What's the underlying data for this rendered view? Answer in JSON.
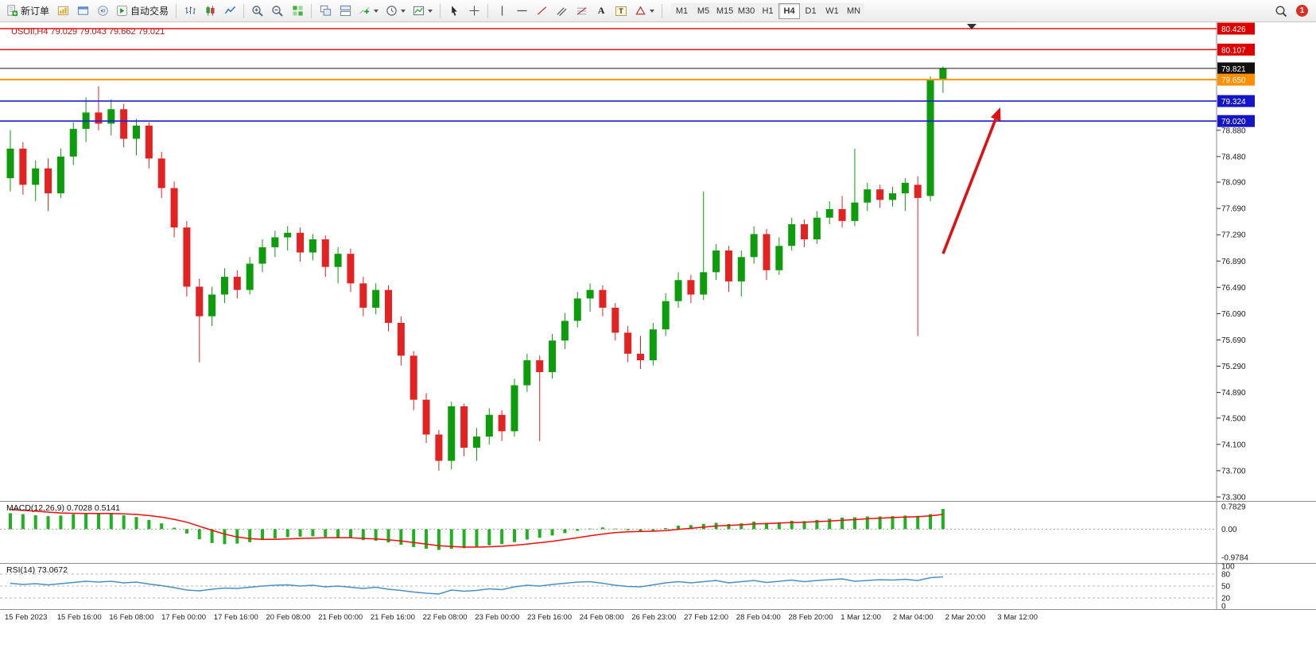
{
  "toolbar": {
    "new_order_label": "新订单",
    "auto_trading_label": "自动交易",
    "text_tool_glyph": "A",
    "label_tool_glyph": "T",
    "timeframes": [
      "M1",
      "M5",
      "M15",
      "M30",
      "H1",
      "H4",
      "D1",
      "W1",
      "MN"
    ],
    "active_timeframe": "H4",
    "notification_count": "1"
  },
  "chart": {
    "title_text": "USOIl,H4 79.029 79.043 79.662 79.021"
  },
  "chart_data": {
    "type": "candlestick",
    "symbol": "USOIl",
    "period": "H4",
    "colors": {
      "bull": "#0c9c0c",
      "bear": "#e32222",
      "macd_hist": "#1eb31e",
      "macd_signal": "#f40b0b",
      "rsi": "#4a90c2",
      "title": "#c01212",
      "arrow": "#e01010"
    },
    "price_axis": {
      "max": 80.426,
      "min": 73.3,
      "ticks": [
        78.88,
        78.48,
        78.09,
        77.69,
        77.29,
        76.89,
        76.49,
        76.09,
        75.69,
        75.29,
        74.89,
        74.5,
        74.1,
        73.7,
        73.3
      ]
    },
    "hlines": [
      {
        "price": 80.426,
        "color": "#e51515",
        "tag": "#dd0000",
        "width": 1.4
      },
      {
        "price": 80.107,
        "color": "#e51515",
        "tag": "#dd0000",
        "width": 1.4
      },
      {
        "price": 79.821,
        "color": "#1a1a1a",
        "tag": "#111111",
        "width": 1
      },
      {
        "price": 79.65,
        "color": "#ff9500",
        "tag": "#ff8e00",
        "width": 2
      },
      {
        "price": 79.324,
        "color": "#2121cd",
        "tag": "#1515c8",
        "width": 1.7
      },
      {
        "price": 79.02,
        "color": "#2121cd",
        "tag": "#1515c8",
        "width": 1.7
      }
    ],
    "candles": [
      [
        78.15,
        78.88,
        77.95,
        78.6
      ],
      [
        78.6,
        78.7,
        77.9,
        78.05
      ],
      [
        78.05,
        78.42,
        77.8,
        78.3
      ],
      [
        78.3,
        78.45,
        77.65,
        77.92
      ],
      [
        77.92,
        78.6,
        77.85,
        78.48
      ],
      [
        78.48,
        79.0,
        78.35,
        78.9
      ],
      [
        78.9,
        79.38,
        78.7,
        79.15
      ],
      [
        79.15,
        79.55,
        78.88,
        78.98
      ],
      [
        78.98,
        79.35,
        78.8,
        79.2
      ],
      [
        79.2,
        79.28,
        78.62,
        78.75
      ],
      [
        78.75,
        79.05,
        78.5,
        78.95
      ],
      [
        78.95,
        79.0,
        78.3,
        78.45
      ],
      [
        78.45,
        78.55,
        77.85,
        78.0
      ],
      [
        78.0,
        78.1,
        77.25,
        77.4
      ],
      [
        77.4,
        77.5,
        76.35,
        76.5
      ],
      [
        76.5,
        76.62,
        75.35,
        76.05
      ],
      [
        76.05,
        76.5,
        75.9,
        76.38
      ],
      [
        76.38,
        76.78,
        76.25,
        76.65
      ],
      [
        76.65,
        76.75,
        76.32,
        76.45
      ],
      [
        76.45,
        76.95,
        76.38,
        76.85
      ],
      [
        76.85,
        77.22,
        76.72,
        77.1
      ],
      [
        77.1,
        77.35,
        76.95,
        77.25
      ],
      [
        77.25,
        77.42,
        77.05,
        77.32
      ],
      [
        77.32,
        77.4,
        76.88,
        77.02
      ],
      [
        77.02,
        77.3,
        76.9,
        77.22
      ],
      [
        77.22,
        77.28,
        76.65,
        76.8
      ],
      [
        76.8,
        77.1,
        76.55,
        77.0
      ],
      [
        77.0,
        77.08,
        76.42,
        76.55
      ],
      [
        76.55,
        76.65,
        76.05,
        76.18
      ],
      [
        76.18,
        76.55,
        76.08,
        76.45
      ],
      [
        76.45,
        76.52,
        75.82,
        75.95
      ],
      [
        75.95,
        76.05,
        75.3,
        75.45
      ],
      [
        75.45,
        75.52,
        74.62,
        74.78
      ],
      [
        74.78,
        74.88,
        74.12,
        74.25
      ],
      [
        74.25,
        74.32,
        73.7,
        73.85
      ],
      [
        73.85,
        74.75,
        73.72,
        74.68
      ],
      [
        74.68,
        74.72,
        73.92,
        74.05
      ],
      [
        74.05,
        74.35,
        73.85,
        74.22
      ],
      [
        74.22,
        74.65,
        74.1,
        74.55
      ],
      [
        74.55,
        74.62,
        74.15,
        74.3
      ],
      [
        74.3,
        75.1,
        74.22,
        75.0
      ],
      [
        75.0,
        75.48,
        74.9,
        75.38
      ],
      [
        75.38,
        75.45,
        74.15,
        75.2
      ],
      [
        75.2,
        75.78,
        75.1,
        75.68
      ],
      [
        75.68,
        76.1,
        75.55,
        75.98
      ],
      [
        75.98,
        76.42,
        75.88,
        76.32
      ],
      [
        76.32,
        76.55,
        76.12,
        76.45
      ],
      [
        76.45,
        76.52,
        76.05,
        76.18
      ],
      [
        76.18,
        76.25,
        75.68,
        75.8
      ],
      [
        75.8,
        75.9,
        75.35,
        75.48
      ],
      [
        75.48,
        75.75,
        75.25,
        75.38
      ],
      [
        75.38,
        75.95,
        75.3,
        75.85
      ],
      [
        75.85,
        76.4,
        75.75,
        76.28
      ],
      [
        76.28,
        76.72,
        76.18,
        76.6
      ],
      [
        76.6,
        76.68,
        76.25,
        76.38
      ],
      [
        76.38,
        77.95,
        76.3,
        76.72
      ],
      [
        76.72,
        77.15,
        76.6,
        77.05
      ],
      [
        77.05,
        77.12,
        76.42,
        76.58
      ],
      [
        76.58,
        77.05,
        76.35,
        76.95
      ],
      [
        76.95,
        77.42,
        76.85,
        77.3
      ],
      [
        77.3,
        77.38,
        76.6,
        76.75
      ],
      [
        76.75,
        77.25,
        76.68,
        77.12
      ],
      [
        77.12,
        77.55,
        77.05,
        77.45
      ],
      [
        77.45,
        77.52,
        77.1,
        77.22
      ],
      [
        77.22,
        77.65,
        77.15,
        77.55
      ],
      [
        77.55,
        77.8,
        77.45,
        77.68
      ],
      [
        77.68,
        77.88,
        77.4,
        77.5
      ],
      [
        77.5,
        78.6,
        77.42,
        77.78
      ],
      [
        77.78,
        78.08,
        77.65,
        77.98
      ],
      [
        77.98,
        78.05,
        77.7,
        77.82
      ],
      [
        77.82,
        78.02,
        77.72,
        77.92
      ],
      [
        77.92,
        78.15,
        77.65,
        78.08
      ],
      [
        78.05,
        78.18,
        75.75,
        77.85
      ],
      [
        77.88,
        79.7,
        77.8,
        79.64
      ],
      [
        79.64,
        79.85,
        79.45,
        79.82
      ]
    ],
    "macd": {
      "label": "MACD(12,26,9)",
      "main_value": "0.7028",
      "signal_value": "0.5141",
      "max": 0.7829,
      "min": -0.9784,
      "axis": [
        {
          "label": "0.7829",
          "value": 0.7829
        },
        {
          "label": "0.00",
          "value": 0
        },
        {
          "label": "-0.9784",
          "value": -0.9784
        }
      ],
      "hist": [
        0.55,
        0.52,
        0.48,
        0.45,
        0.47,
        0.52,
        0.55,
        0.53,
        0.54,
        0.48,
        0.42,
        0.32,
        0.2,
        0.05,
        -0.15,
        -0.35,
        -0.48,
        -0.52,
        -0.5,
        -0.45,
        -0.38,
        -0.32,
        -0.28,
        -0.26,
        -0.25,
        -0.27,
        -0.28,
        -0.32,
        -0.38,
        -0.4,
        -0.46,
        -0.54,
        -0.62,
        -0.68,
        -0.72,
        -0.68,
        -0.66,
        -0.62,
        -0.56,
        -0.52,
        -0.45,
        -0.36,
        -0.3,
        -0.22,
        -0.14,
        -0.06,
        0.02,
        0.06,
        0.02,
        -0.04,
        -0.08,
        -0.05,
        0.04,
        0.12,
        0.14,
        0.18,
        0.22,
        0.18,
        0.2,
        0.26,
        0.22,
        0.24,
        0.29,
        0.28,
        0.32,
        0.36,
        0.4,
        0.41,
        0.44,
        0.44,
        0.45,
        0.47,
        0.46,
        0.52,
        0.7
      ],
      "signal": [
        0.68,
        0.65,
        0.62,
        0.59,
        0.56,
        0.55,
        0.54,
        0.54,
        0.54,
        0.53,
        0.51,
        0.47,
        0.42,
        0.34,
        0.24,
        0.1,
        -0.04,
        -0.17,
        -0.27,
        -0.33,
        -0.35,
        -0.35,
        -0.34,
        -0.32,
        -0.31,
        -0.3,
        -0.3,
        -0.3,
        -0.32,
        -0.34,
        -0.37,
        -0.41,
        -0.46,
        -0.52,
        -0.57,
        -0.6,
        -0.62,
        -0.62,
        -0.61,
        -0.59,
        -0.56,
        -0.52,
        -0.47,
        -0.42,
        -0.36,
        -0.3,
        -0.23,
        -0.17,
        -0.12,
        -0.09,
        -0.08,
        -0.07,
        -0.05,
        -0.01,
        0.03,
        0.07,
        0.11,
        0.13,
        0.15,
        0.18,
        0.19,
        0.21,
        0.23,
        0.24,
        0.26,
        0.28,
        0.31,
        0.33,
        0.36,
        0.38,
        0.4,
        0.42,
        0.43,
        0.46,
        0.51
      ]
    },
    "rsi": {
      "label": "RSI(14)",
      "value": "73.0672",
      "axis": [
        100,
        80,
        50,
        20,
        0
      ],
      "dashed_levels": [
        80,
        50,
        20
      ],
      "values": [
        57,
        54,
        56,
        53,
        56,
        59,
        62,
        60,
        62,
        58,
        60,
        55,
        51,
        46,
        40,
        38,
        42,
        45,
        44,
        47,
        50,
        52,
        53,
        50,
        52,
        48,
        50,
        47,
        44,
        47,
        42,
        39,
        35,
        32,
        30,
        40,
        37,
        39,
        43,
        41,
        48,
        52,
        50,
        54,
        57,
        60,
        61,
        57,
        52,
        49,
        48,
        53,
        58,
        61,
        58,
        61,
        64,
        58,
        61,
        64,
        59,
        62,
        65,
        61,
        64,
        66,
        68,
        62,
        64,
        66,
        65,
        67,
        64,
        71,
        73
      ]
    },
    "time_labels": [
      "15 Feb 2023",
      "15 Feb 16:00",
      "16 Feb 08:00",
      "17 Feb 00:00",
      "17 Feb 16:00",
      "20 Feb 08:00",
      "21 Feb 00:00",
      "21 Feb 16:00",
      "22 Feb 08:00",
      "23 Feb 00:00",
      "23 Feb 16:00",
      "24 Feb 08:00",
      "26 Feb 23:00",
      "27 Feb 12:00",
      "28 Feb 04:00",
      "28 Feb 20:00",
      "1 Mar 12:00",
      "2 Mar 04:00",
      "2 Mar 20:00",
      "3 Mar 12:00"
    ],
    "annotations": {
      "arrow": {
        "color": "#e01010"
      }
    }
  }
}
